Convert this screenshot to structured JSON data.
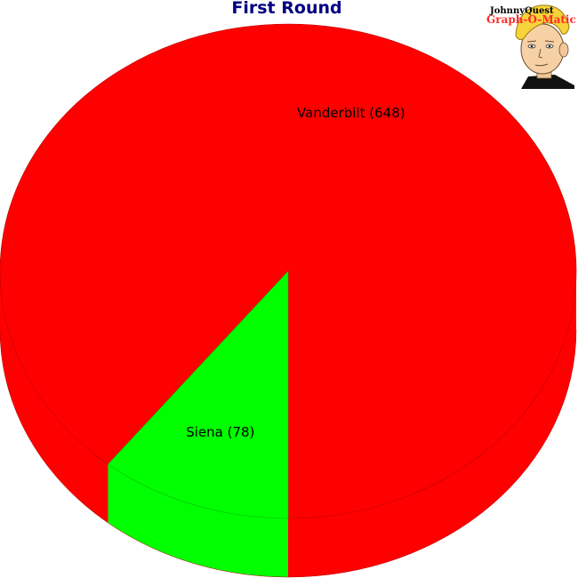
{
  "chart_data": {
    "type": "pie",
    "title": "First Round",
    "slices": [
      {
        "label": "Vanderbilt (648)",
        "value": 648,
        "color": "#ff0000"
      },
      {
        "label": "Siena (78)",
        "value": 78,
        "color": "#00ff00"
      }
    ]
  },
  "logo": {
    "line1": "JohnnyQuest",
    "line2": "Graph-O-Matic"
  }
}
